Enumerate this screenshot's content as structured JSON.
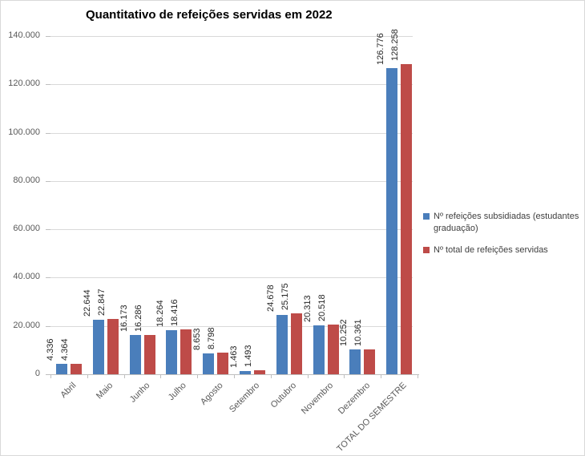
{
  "chart_data": {
    "type": "bar",
    "title": "Quantitativo de refeições servidas em 2022",
    "categories": [
      "Abril",
      "Maio",
      "Junho",
      "Julho",
      "Agosto",
      "Setembro",
      "Outubro",
      "Novembro",
      "Dezembro",
      "TOTAL DO SEMESTRE"
    ],
    "series": [
      {
        "name": "Nº refeições subsidiadas (estudantes graduação)",
        "color": "#4a7ebb",
        "values": [
          4336,
          22644,
          16173,
          18264,
          8653,
          1463,
          24678,
          20313,
          10252,
          126776
        ],
        "labels": [
          "4.336",
          "22.644",
          "16.173",
          "18.264",
          "8.653",
          "1.463",
          "24.678",
          "20.313",
          "10.252",
          "126.776"
        ]
      },
      {
        "name": "Nº total de refeições servidas",
        "color": "#be4b48",
        "values": [
          4364,
          22847,
          16286,
          18416,
          8798,
          1493,
          25175,
          20518,
          10361,
          128258
        ],
        "labels": [
          "4.364",
          "22.847",
          "16.286",
          "18.416",
          "8.798",
          "1.493",
          "25.175",
          "20.518",
          "10.361",
          "128.258"
        ]
      }
    ],
    "ylim": [
      0,
      140000
    ],
    "ytick_step": 20000,
    "ytick_labels": [
      "0",
      "20.000",
      "40.000",
      "60.000",
      "80.000",
      "100.000",
      "120.000",
      "140.000"
    ],
    "grid": true,
    "grid_color": "#d9d9d9",
    "axis_color": "#bfbfbf",
    "legend_position": "right"
  }
}
